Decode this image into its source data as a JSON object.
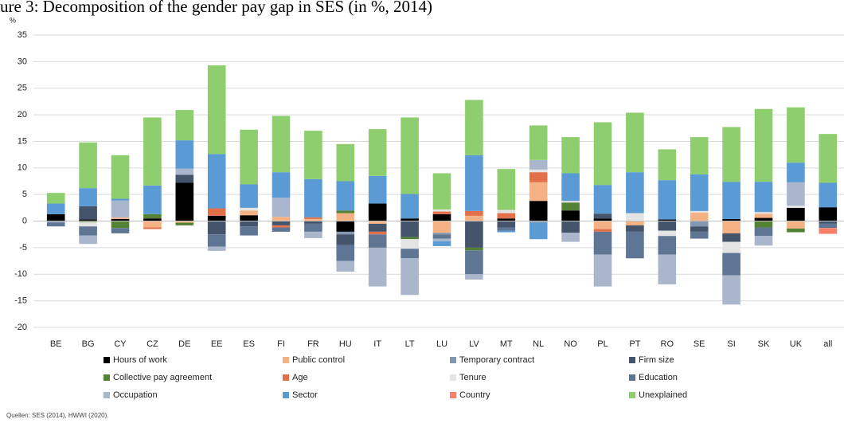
{
  "chart_data": {
    "type": "stacked_bar",
    "title": "ure 3: Decomposition of the gender pay gap in SES (in %, 2014)",
    "y_label": "%",
    "source": "Quellen: SES (2014), HWWI (2020).",
    "categories": [
      "BE",
      "BG",
      "CY",
      "CZ",
      "DE",
      "EE",
      "ES",
      "FI",
      "FR",
      "HU",
      "IT",
      "LT",
      "LU",
      "LV",
      "MT",
      "NL",
      "NO",
      "PL",
      "PT",
      "RO",
      "SE",
      "SI",
      "SK",
      "UK",
      "all"
    ],
    "ylim": [
      -20,
      35
    ],
    "yticks": [
      -20,
      -15,
      -10,
      -5,
      0,
      5,
      10,
      15,
      20,
      25,
      30,
      35
    ],
    "grid": true,
    "legend": "bottom",
    "series": [
      {
        "name": "Hours of work",
        "color": "#000000",
        "values": [
          1.3,
          0.3,
          0.4,
          0.5,
          7.2,
          1,
          1.1,
          0,
          0,
          -2,
          3.3,
          0.5,
          1.3,
          0,
          0.5,
          3.8,
          2,
          0.5,
          0,
          0.3,
          0,
          0.4,
          0.6,
          2.5,
          2.6
        ]
      },
      {
        "name": "Public control",
        "color": "#f4b183",
        "values": [
          0,
          0,
          0.3,
          -1.2,
          -0.3,
          0,
          0.9,
          0.8,
          0.4,
          1.5,
          -0.5,
          0,
          -2.2,
          1,
          0,
          3.5,
          0,
          -1.5,
          -0.8,
          0,
          1.6,
          -2.3,
          0.8,
          -1.4,
          0
        ]
      },
      {
        "name": "Temporary contract",
        "color": "#8497b0",
        "values": [
          -0.3,
          0,
          0,
          0,
          0,
          0,
          0,
          0,
          0,
          -0.5,
          0,
          0,
          -0.3,
          0,
          0,
          -0.3,
          0,
          0,
          0,
          0,
          -1,
          0,
          0,
          0,
          0
        ]
      },
      {
        "name": "Firm size",
        "color": "#44546a",
        "values": [
          0,
          2.5,
          0,
          0,
          1.5,
          -2.5,
          -1,
          -0.8,
          -0.5,
          -2,
          -1.5,
          -3,
          0,
          -5,
          -1.2,
          0,
          -2.2,
          0.9,
          -1.2,
          -1.8,
          -1,
          -1.6,
          0,
          0,
          -0.5
        ]
      },
      {
        "name": "Collective pay agreement",
        "color": "#548235",
        "values": [
          0,
          -0.2,
          -1.3,
          0.8,
          -0.5,
          0,
          0,
          0,
          0,
          0.5,
          0,
          -0.4,
          0,
          -0.5,
          0,
          0,
          1.5,
          0,
          0,
          0,
          0,
          0,
          -1.2,
          -0.7,
          0
        ]
      },
      {
        "name": "Age",
        "color": "#e2704a",
        "values": [
          0,
          0,
          0,
          -0.3,
          0,
          1.4,
          0,
          -0.4,
          0.3,
          0,
          -0.5,
          0,
          0.5,
          0.9,
          1,
          1.9,
          0,
          -0.5,
          0,
          0,
          0,
          0,
          0,
          0,
          0
        ]
      },
      {
        "name": "Tenure",
        "color": "#e4e4e4",
        "values": [
          0,
          -0.8,
          0,
          0,
          0,
          0,
          0.5,
          0,
          0,
          0,
          0,
          -1.8,
          0.4,
          0,
          0.6,
          0.5,
          0.3,
          0,
          1.5,
          -1,
          0.3,
          -2.1,
          0.3,
          0.4,
          0
        ]
      },
      {
        "name": "Education",
        "color": "#5f7594",
        "values": [
          -0.7,
          -1.7,
          -1,
          0,
          0,
          -2.3,
          -1.7,
          -0.8,
          -1.5,
          -3,
          -2.5,
          -1.8,
          -0.8,
          -4.5,
          -0.6,
          0,
          0,
          -4.3,
          -5,
          -3.5,
          -1.3,
          -4.2,
          -1.6,
          0,
          -0.8
        ]
      },
      {
        "name": "Occupation",
        "color": "#a9b6cc",
        "values": [
          0,
          -1.6,
          3.2,
          0,
          1.2,
          -0.8,
          0,
          3.6,
          -1.2,
          -2,
          -7.3,
          -6.9,
          -0.5,
          -1,
          0,
          1.8,
          -1.7,
          -6,
          0,
          -5.6,
          0,
          -5.5,
          -1.8,
          4.4,
          0
        ]
      },
      {
        "name": "Sector",
        "color": "#5b9bd5",
        "values": [
          2,
          3.4,
          0.3,
          5.4,
          5.3,
          10.2,
          4.4,
          4.8,
          7.2,
          5.5,
          5.2,
          4.6,
          -0.9,
          10.5,
          -0.3,
          -3.1,
          5.2,
          5.4,
          7.7,
          7.4,
          6.9,
          7,
          5.7,
          3.7,
          4.6
        ]
      },
      {
        "name": "Country",
        "color": "#f8806b",
        "values": [
          0,
          0,
          0,
          0,
          0,
          0,
          0,
          0,
          0,
          0,
          0,
          0,
          0,
          0,
          0,
          0,
          0,
          0,
          0,
          0,
          0,
          0,
          0,
          0,
          -1.1
        ]
      },
      {
        "name": "Unexplained",
        "color": "#8fce6f",
        "values": [
          2,
          8.6,
          8.2,
          12.8,
          5.7,
          16.7,
          10.3,
          10.6,
          9.1,
          7,
          8.8,
          14.4,
          6.8,
          10.4,
          7.7,
          6.5,
          6.8,
          11.8,
          11.2,
          5.8,
          7,
          10.3,
          13.7,
          10.4,
          9.2
        ]
      }
    ]
  }
}
